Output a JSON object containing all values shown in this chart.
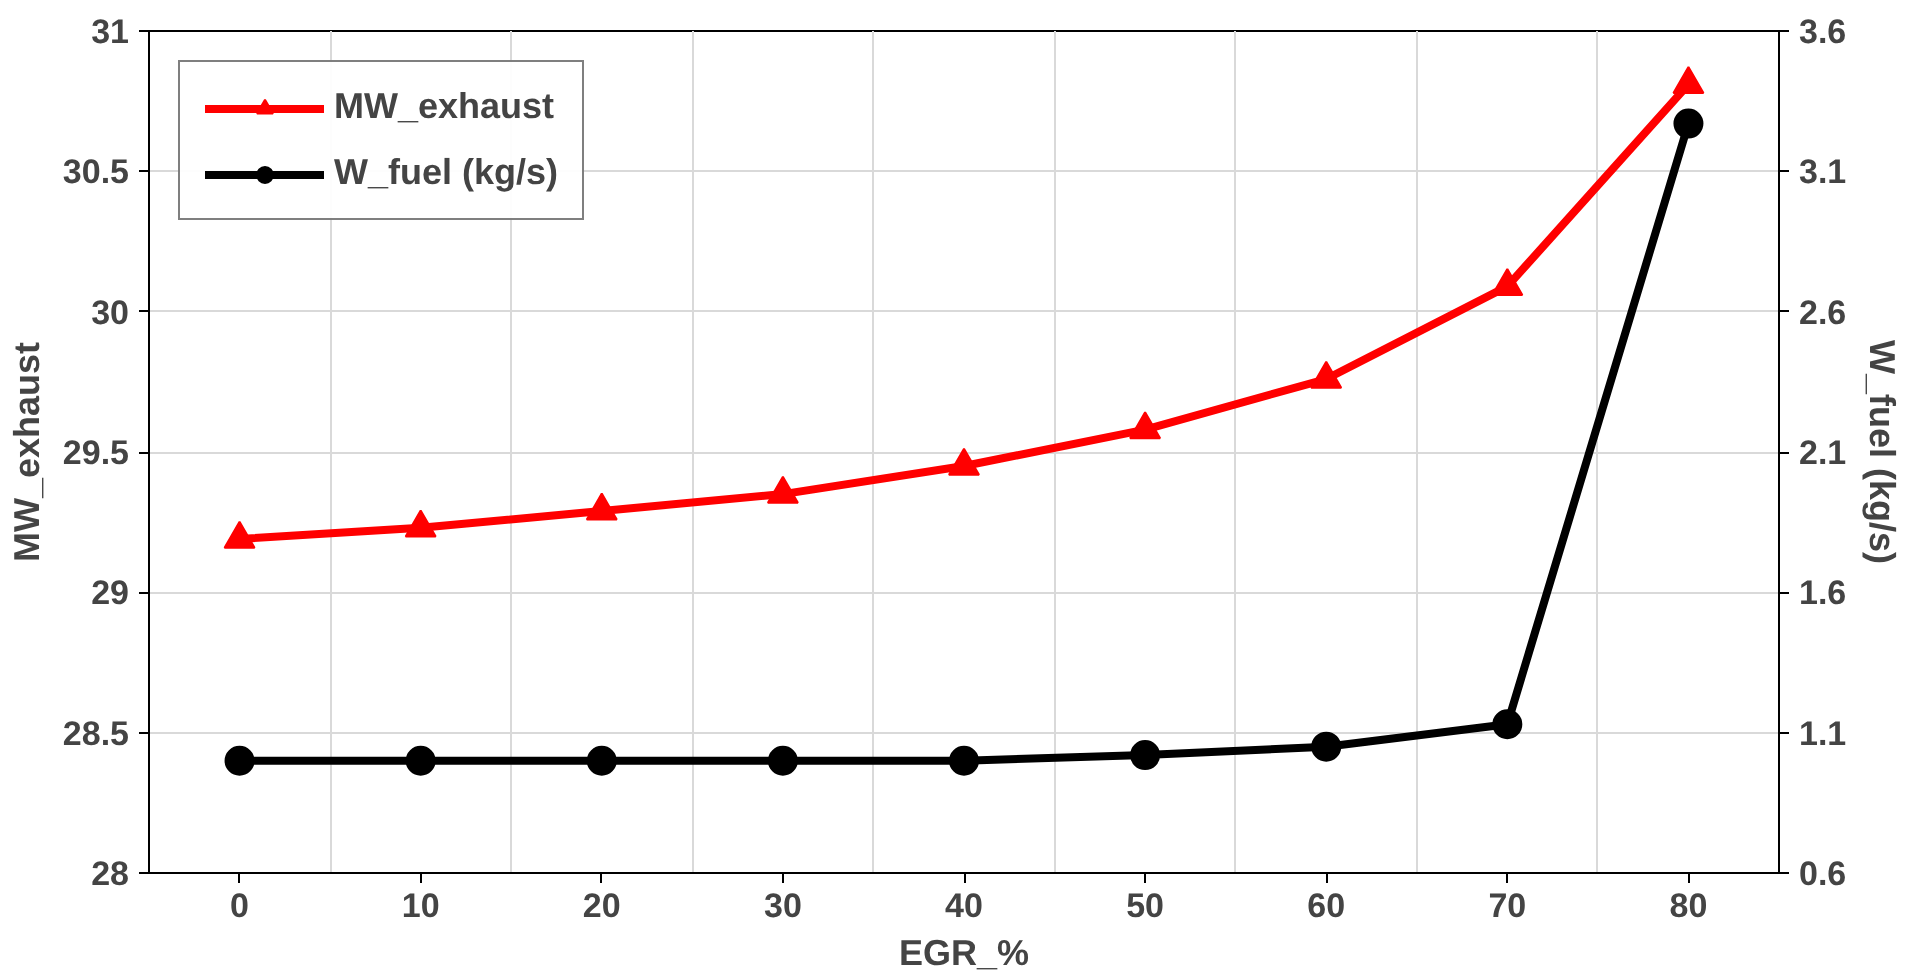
{
  "chart_data": {
    "type": "line",
    "xlabel": "EGR_%",
    "ylabel": "MW_exhaust",
    "y2label": "W_fuel (kg/s)",
    "categories": [
      "0",
      "10",
      "20",
      "30",
      "40",
      "50",
      "60",
      "70",
      "80"
    ],
    "series": [
      {
        "name": "MW_exhaust",
        "color": "#ff0000",
        "marker": "triangle",
        "values": [
          29.19,
          29.23,
          29.29,
          29.35,
          29.45,
          29.58,
          29.76,
          30.09,
          30.81
        ]
      },
      {
        "name": "W_fuel (kg/s)",
        "color": "#000000",
        "marker": "circle",
        "axis": "y2",
        "values": [
          1.0,
          1.0,
          1.0,
          1.0,
          1.0,
          1.02,
          1.05,
          1.13,
          3.27
        ]
      }
    ],
    "ylim": [
      28,
      31
    ],
    "yticks": [
      28,
      28.5,
      29,
      29.5,
      30,
      30.5,
      31
    ],
    "y2lim": [
      0.6,
      3.6
    ],
    "y2ticks": [
      0.6,
      1.1,
      1.6,
      2.1,
      2.6,
      3.1,
      3.6
    ],
    "grid": true,
    "legend": "top left",
    "line_style": "solid"
  }
}
